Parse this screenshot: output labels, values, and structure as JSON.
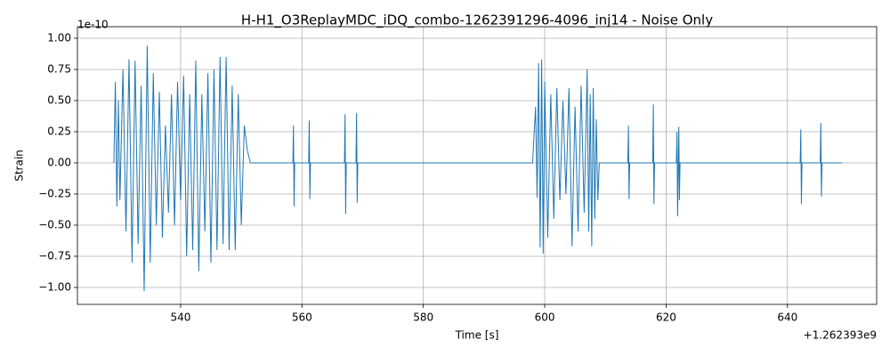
{
  "chart_data": {
    "type": "line",
    "title": "H-H1_O3ReplayMDC_iDQ_combo-1262391296-4096_inj14 - Noise Only",
    "xlabel": "Time [s]",
    "ylabel": "Strain",
    "y_offset_label": "1e-10",
    "x_offset_label": "+1.262393e9",
    "grid": true,
    "xlim": [
      523.0,
      654.7
    ],
    "ylim": [
      -1.136,
      1.093
    ],
    "xticks": [
      540,
      560,
      580,
      600,
      620,
      640
    ],
    "yticks": [
      {
        "value": -1.0,
        "label": "−1.00"
      },
      {
        "value": -0.75,
        "label": "−0.75"
      },
      {
        "value": -0.5,
        "label": "−0.50"
      },
      {
        "value": -0.25,
        "label": "−0.25"
      },
      {
        "value": 0,
        "label": "0.00"
      },
      {
        "value": 0.25,
        "label": "0.25"
      },
      {
        "value": 0.5,
        "label": "0.50"
      },
      {
        "value": 0.75,
        "label": "0.75"
      },
      {
        "value": 1.0,
        "label": "1.00"
      }
    ],
    "x": [
      529.0,
      529.25,
      529.5,
      529.75,
      530.0,
      530.5,
      531.0,
      531.5,
      532.0,
      532.5,
      533.0,
      533.5,
      534.0,
      534.5,
      535.0,
      535.5,
      536.0,
      536.5,
      537.0,
      537.5,
      538.0,
      538.5,
      539.0,
      539.5,
      540.0,
      540.5,
      541.0,
      541.5,
      542.0,
      542.5,
      543.0,
      543.5,
      544.0,
      544.5,
      545.0,
      545.5,
      546.0,
      546.5,
      547.0,
      547.5,
      548.0,
      548.5,
      549.0,
      549.5,
      550.0,
      550.5,
      551.0,
      551.5,
      558.5,
      558.6,
      558.7,
      558.8,
      561.1,
      561.2,
      561.3,
      561.4,
      567.0,
      567.1,
      567.2,
      567.3,
      568.9,
      569.0,
      569.1,
      569.2,
      598.0,
      598.5,
      598.75,
      599.0,
      599.25,
      599.5,
      599.75,
      600.0,
      600.5,
      601.0,
      601.5,
      602.0,
      602.5,
      603.0,
      603.5,
      604.0,
      604.5,
      605.0,
      605.5,
      606.0,
      606.5,
      607.0,
      607.25,
      607.5,
      607.75,
      608.0,
      608.25,
      608.5,
      608.75,
      609.0,
      613.7,
      613.8,
      613.9,
      614.0,
      617.8,
      617.9,
      618.0,
      618.1,
      621.7,
      621.8,
      621.9,
      622.1,
      622.2,
      622.3,
      642.1,
      642.2,
      642.3,
      642.4,
      645.4,
      645.5,
      645.6,
      645.7,
      649.0
    ],
    "series": [
      {
        "name": "strain",
        "color": "#1f77b4",
        "values": [
          0.0,
          0.65,
          -0.35,
          0.5,
          -0.3,
          0.75,
          -0.55,
          0.83,
          -0.8,
          0.82,
          -0.65,
          0.62,
          -1.03,
          0.94,
          -0.8,
          0.72,
          -0.5,
          0.57,
          -0.6,
          0.3,
          -0.4,
          0.55,
          -0.5,
          0.65,
          -0.3,
          0.7,
          -0.75,
          0.55,
          -0.7,
          0.82,
          -0.87,
          0.55,
          -0.55,
          0.72,
          -0.8,
          0.75,
          -0.7,
          0.85,
          -0.65,
          0.85,
          -0.7,
          0.62,
          -0.7,
          0.55,
          -0.5,
          0.3,
          0.1,
          0.0,
          0.0,
          0.3,
          -0.35,
          0.0,
          0.0,
          0.34,
          -0.29,
          0.0,
          0.0,
          0.39,
          -0.41,
          0.0,
          0.0,
          0.4,
          -0.32,
          0.0,
          0.0,
          0.45,
          -0.28,
          0.8,
          -0.68,
          0.83,
          -0.73,
          0.65,
          -0.6,
          0.55,
          -0.45,
          0.6,
          -0.3,
          0.5,
          -0.25,
          0.6,
          -0.67,
          0.45,
          -0.55,
          0.62,
          -0.4,
          0.75,
          -0.55,
          0.55,
          -0.67,
          0.6,
          -0.45,
          0.35,
          -0.3,
          0.0,
          0.0,
          0.3,
          -0.29,
          0.0,
          0.0,
          0.47,
          -0.33,
          0.0,
          0.0,
          0.25,
          -0.43,
          0.29,
          -0.3,
          0.0,
          0.0,
          0.27,
          -0.33,
          0.0,
          0.0,
          0.32,
          -0.27,
          0.0,
          0.0
        ]
      }
    ]
  }
}
